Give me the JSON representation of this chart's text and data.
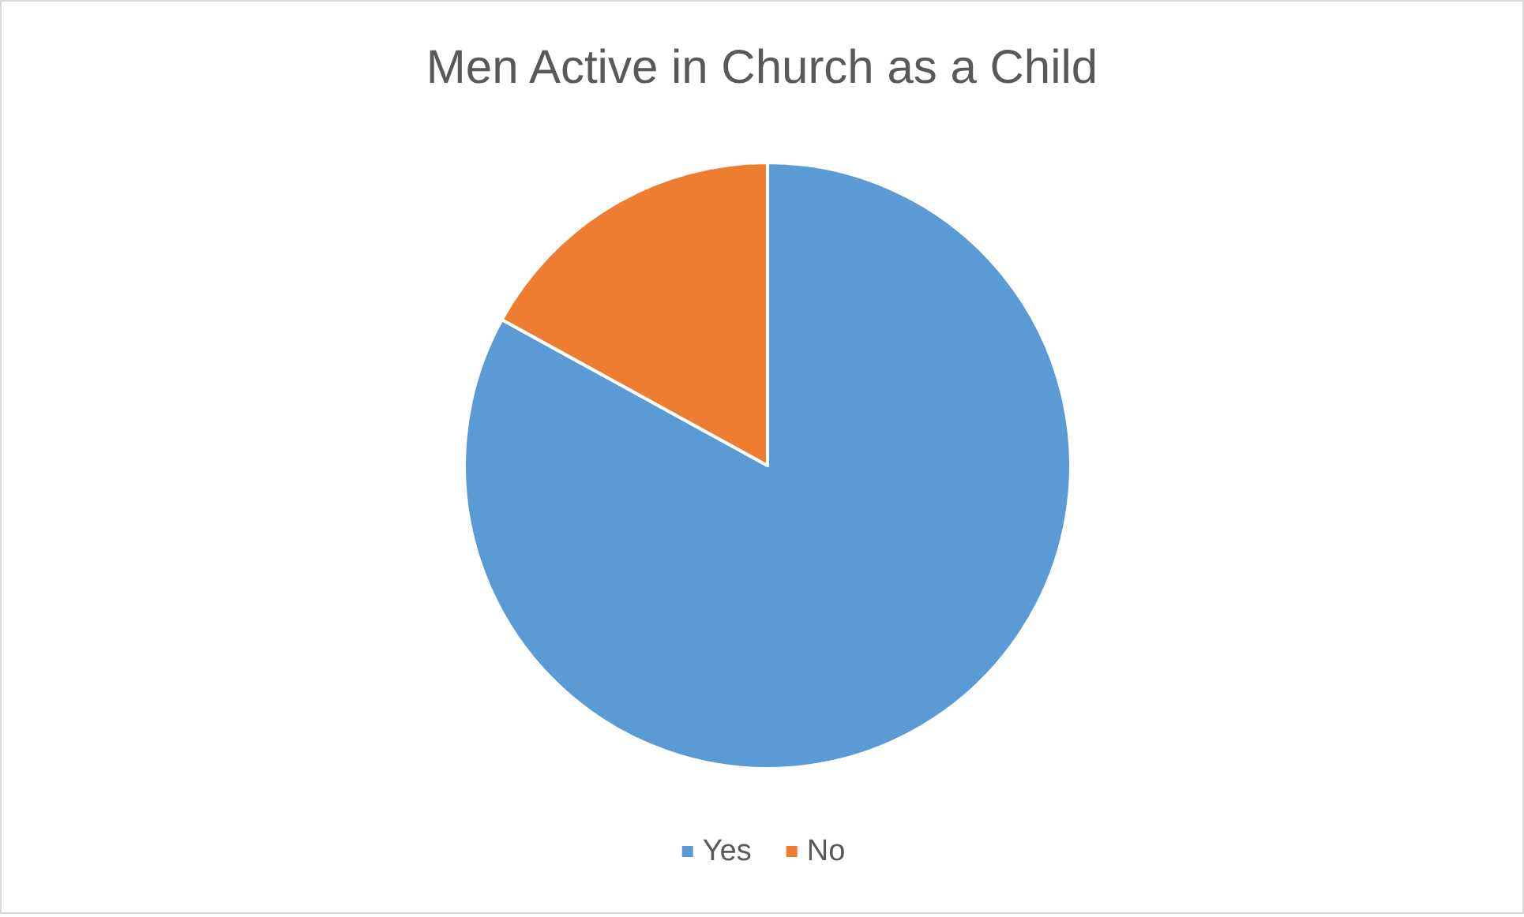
{
  "chart_data": {
    "type": "pie",
    "title": "Men Active in Church as a Child",
    "categories": [
      "Yes",
      "No"
    ],
    "values": [
      83,
      17
    ],
    "colors": [
      "#5b9bd5",
      "#ed7d31"
    ],
    "legend": "bottom"
  }
}
